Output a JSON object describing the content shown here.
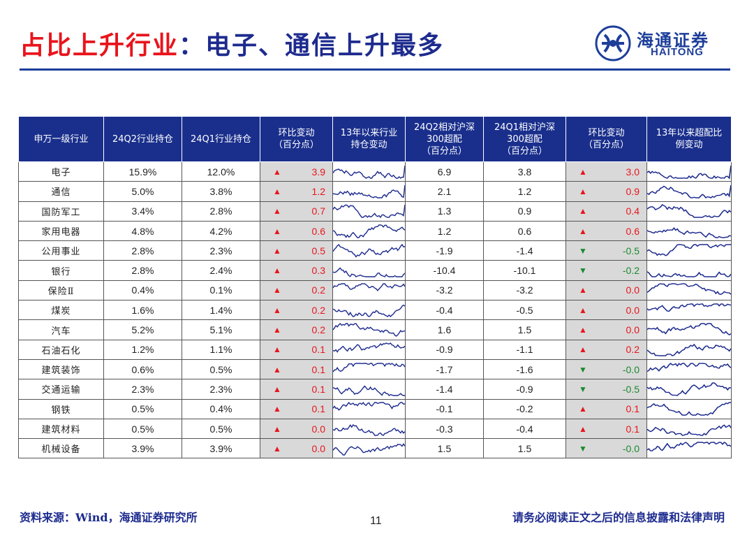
{
  "title": {
    "part1": "占比上升行业",
    "part2": "：电子、通信上升最多"
  },
  "logo": {
    "cn": "海通证券",
    "en": "HAITONG"
  },
  "table": {
    "headers": [
      "申万一级行业",
      "24Q2行业持仓",
      "24Q1行业持仓",
      "环比变动\n（百分点）",
      "13年以来行业\n持仓变动",
      "24Q2相对沪深\n300超配\n（百分点）",
      "24Q1相对沪深\n300超配\n（百分点）",
      "环比变动\n（百分点）",
      "13年以来超配比\n例变动"
    ],
    "rows": [
      {
        "industry": "电子",
        "q2": "15.9%",
        "q1": "12.0%",
        "chg": "3.9",
        "chg_dir": "up",
        "ow_q2": "6.9",
        "ow_q1": "3.8",
        "ow_chg": "3.0",
        "ow_dir": "up"
      },
      {
        "industry": "通信",
        "q2": "5.0%",
        "q1": "3.8%",
        "chg": "1.2",
        "chg_dir": "up",
        "ow_q2": "2.1",
        "ow_q1": "1.2",
        "ow_chg": "0.9",
        "ow_dir": "up"
      },
      {
        "industry": "国防军工",
        "q2": "3.4%",
        "q1": "2.8%",
        "chg": "0.7",
        "chg_dir": "up",
        "ow_q2": "1.3",
        "ow_q1": "0.9",
        "ow_chg": "0.4",
        "ow_dir": "up"
      },
      {
        "industry": "家用电器",
        "q2": "4.8%",
        "q1": "4.2%",
        "chg": "0.6",
        "chg_dir": "up",
        "ow_q2": "1.2",
        "ow_q1": "0.6",
        "ow_chg": "0.6",
        "ow_dir": "up"
      },
      {
        "industry": "公用事业",
        "q2": "2.8%",
        "q1": "2.3%",
        "chg": "0.5",
        "chg_dir": "up",
        "ow_q2": "-1.9",
        "ow_q1": "-1.4",
        "ow_chg": "-0.5",
        "ow_dir": "down"
      },
      {
        "industry": "银行",
        "q2": "2.8%",
        "q1": "2.4%",
        "chg": "0.3",
        "chg_dir": "up",
        "ow_q2": "-10.4",
        "ow_q1": "-10.1",
        "ow_chg": "-0.2",
        "ow_dir": "down"
      },
      {
        "industry": "保险Ⅱ",
        "q2": "0.4%",
        "q1": "0.1%",
        "chg": "0.2",
        "chg_dir": "up",
        "ow_q2": "-3.2",
        "ow_q1": "-3.2",
        "ow_chg": "0.0",
        "ow_dir": "up"
      },
      {
        "industry": "煤炭",
        "q2": "1.6%",
        "q1": "1.4%",
        "chg": "0.2",
        "chg_dir": "up",
        "ow_q2": "-0.4",
        "ow_q1": "-0.5",
        "ow_chg": "0.0",
        "ow_dir": "up"
      },
      {
        "industry": "汽车",
        "q2": "5.2%",
        "q1": "5.1%",
        "chg": "0.2",
        "chg_dir": "up",
        "ow_q2": "1.6",
        "ow_q1": "1.5",
        "ow_chg": "0.0",
        "ow_dir": "up"
      },
      {
        "industry": "石油石化",
        "q2": "1.2%",
        "q1": "1.1%",
        "chg": "0.1",
        "chg_dir": "up",
        "ow_q2": "-0.9",
        "ow_q1": "-1.1",
        "ow_chg": "0.2",
        "ow_dir": "up"
      },
      {
        "industry": "建筑装饰",
        "q2": "0.6%",
        "q1": "0.5%",
        "chg": "0.1",
        "chg_dir": "up",
        "ow_q2": "-1.7",
        "ow_q1": "-1.6",
        "ow_chg": "-0.0",
        "ow_dir": "down"
      },
      {
        "industry": "交通运输",
        "q2": "2.3%",
        "q1": "2.3%",
        "chg": "0.1",
        "chg_dir": "up",
        "ow_q2": "-1.4",
        "ow_q1": "-0.9",
        "ow_chg": "-0.5",
        "ow_dir": "down"
      },
      {
        "industry": "钢铁",
        "q2": "0.5%",
        "q1": "0.4%",
        "chg": "0.1",
        "chg_dir": "up",
        "ow_q2": "-0.1",
        "ow_q1": "-0.2",
        "ow_chg": "0.1",
        "ow_dir": "up"
      },
      {
        "industry": "建筑材料",
        "q2": "0.5%",
        "q1": "0.5%",
        "chg": "0.0",
        "chg_dir": "up",
        "ow_q2": "-0.3",
        "ow_q1": "-0.4",
        "ow_chg": "0.1",
        "ow_dir": "up"
      },
      {
        "industry": "机械设备",
        "q2": "3.9%",
        "q1": "3.9%",
        "chg": "0.0",
        "chg_dir": "up",
        "ow_q2": "1.5",
        "ow_q1": "1.5",
        "ow_chg": "-0.0",
        "ow_dir": "down"
      }
    ]
  },
  "icons": {
    "up": "triangle-up-icon",
    "down": "triangle-down-icon"
  },
  "colors": {
    "up": "#e8141c",
    "down": "#1a8a2e",
    "header_bg": "#1a2f8c",
    "sparkline": "#1d2b8e",
    "change_bg": "#d9d9d9"
  },
  "footer": {
    "source": "资料来源：Wind，海通证券研究所",
    "page": "11",
    "disclaimer": "请务必阅读正文之后的信息披露和法律声明"
  }
}
